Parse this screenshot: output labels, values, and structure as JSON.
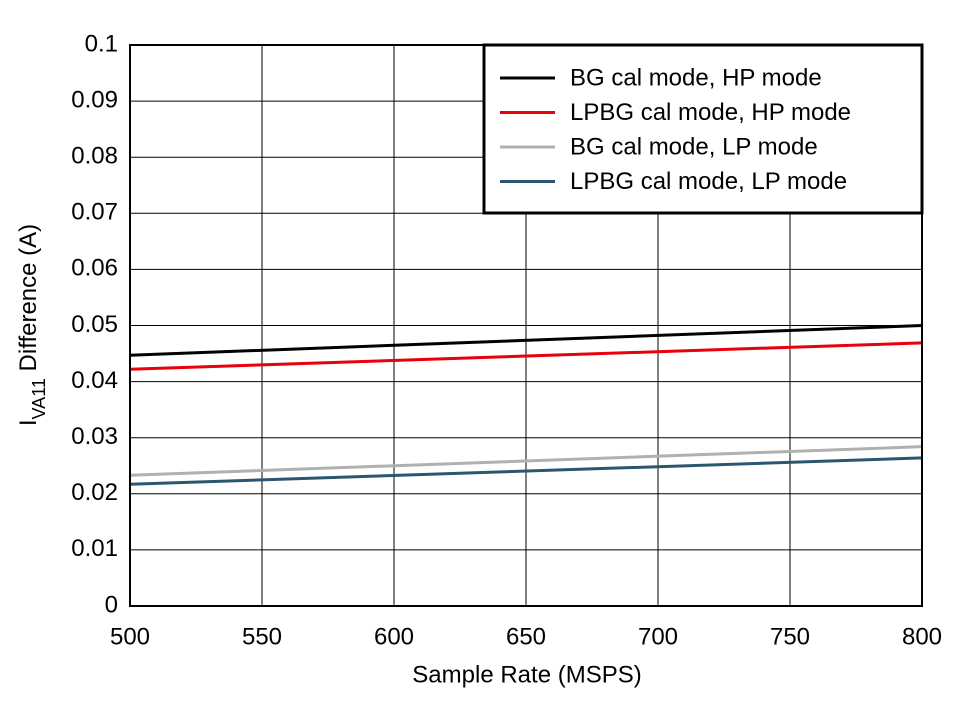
{
  "chart_data": {
    "type": "line",
    "xlabel": "Sample Rate (MSPS)",
    "ylabel": [
      "I",
      "VA11",
      " Difference (A)"
    ],
    "x": [
      500,
      800
    ],
    "series": [
      {
        "name": "BG cal mode, HP mode",
        "color": "#000000",
        "values": [
          0.0447,
          0.05
        ]
      },
      {
        "name": "LPBG cal mode, HP mode",
        "color": "#e8000b",
        "values": [
          0.0422,
          0.0469
        ]
      },
      {
        "name": "BG cal mode, LP mode",
        "color": "#b0b0b0",
        "values": [
          0.0233,
          0.0284
        ]
      },
      {
        "name": "LPBG cal mode, LP mode",
        "color": "#2a5670",
        "values": [
          0.0217,
          0.0264
        ]
      }
    ],
    "xlim": [
      500,
      800
    ],
    "xticks": [
      500,
      550,
      600,
      650,
      700,
      750,
      800
    ],
    "ylim": [
      0,
      0.1
    ],
    "yticks": [
      0,
      0.01,
      0.02,
      0.03,
      0.04,
      0.05,
      0.06,
      0.07,
      0.08,
      0.09,
      0.1
    ],
    "grid": true,
    "legend": "top-right"
  }
}
